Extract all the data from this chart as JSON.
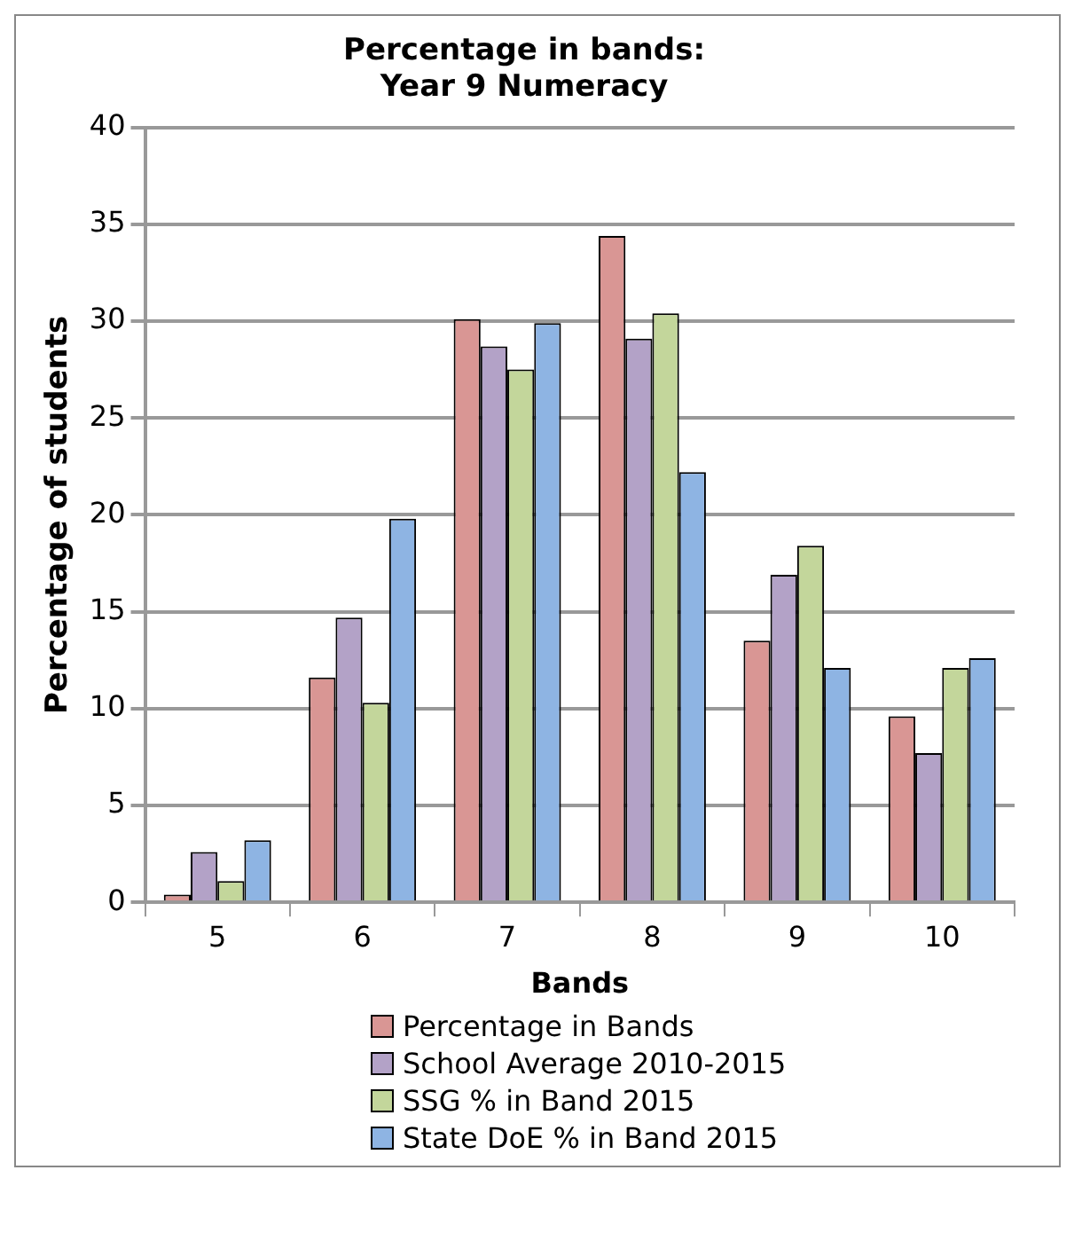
{
  "chart_data": {
    "type": "bar",
    "title": "Percentage in bands:\nYear 9 Numeracy",
    "xlabel": "Bands",
    "ylabel": "Percentage of students",
    "categories": [
      "5",
      "6",
      "7",
      "8",
      "9",
      "10"
    ],
    "series": [
      {
        "name": "Percentage in Bands",
        "color": "#d99694",
        "values": [
          0.4,
          11.6,
          30.1,
          34.4,
          13.5,
          9.6
        ]
      },
      {
        "name": "School Average 2010-2015",
        "color": "#b3a2c7",
        "values": [
          2.6,
          14.7,
          28.7,
          29.1,
          16.9,
          7.7
        ]
      },
      {
        "name": "SSG % in Band 2015",
        "color": "#c3d69b",
        "values": [
          1.1,
          10.3,
          27.5,
          30.4,
          18.4,
          12.1
        ]
      },
      {
        "name": "State DoE % in Band 2015",
        "color": "#8eb4e3",
        "values": [
          3.2,
          19.8,
          29.9,
          22.2,
          12.1,
          12.6
        ]
      }
    ],
    "ylim": [
      0,
      40
    ],
    "yticks": [
      0,
      5,
      10,
      15,
      20,
      25,
      30,
      35,
      40
    ],
    "grid": "y",
    "legend": "bottom"
  }
}
